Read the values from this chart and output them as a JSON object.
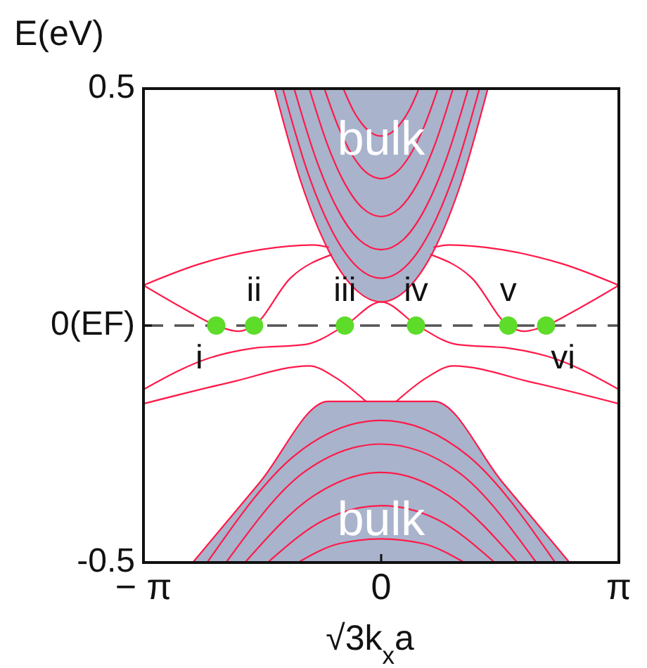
{
  "chart_data": {
    "type": "line",
    "xlabel": "√3k$_{x}$a",
    "ylabel": "E(eV)",
    "xlim": [
      -3.1416,
      3.1416
    ],
    "xticks": [
      {
        "value": -3.1416,
        "label": "− π"
      },
      0,
      {
        "value": 3.1416,
        "label": "π"
      }
    ],
    "ylim": [
      -0.5,
      0.5
    ],
    "yticks": [
      -0.5,
      {
        "value": 0,
        "label": "0(EF)"
      },
      0.5
    ],
    "ref_lines": [
      {
        "axis": "y",
        "value": 0,
        "color": "#555555",
        "line_style": "dashed"
      }
    ],
    "marker": "none",
    "line_style": "solid",
    "series": [
      {
        "color": "#ff1a4a",
        "x": [
          -1.41,
          -1.06,
          -0.71,
          -0.35,
          0,
          0.35,
          0.71,
          1.06,
          1.41
        ],
        "values": [
          0.5,
          0.303,
          0.163,
          0.078,
          0.05,
          0.078,
          0.163,
          0.303,
          0.5
        ],
        "lower": [
          0.5,
          0.303,
          0.163,
          0.078,
          0.05,
          0.078,
          0.163,
          0.303,
          0.5
        ],
        "upper": [
          0.5,
          0.5,
          0.5,
          0.5,
          0.5,
          0.5,
          0.5,
          0.5,
          0.5
        ]
      },
      {
        "color": "#ff1a4a",
        "x": [
          -1.3,
          -0.975,
          -0.65,
          -0.325,
          0,
          0.325,
          0.65,
          0.975,
          1.3
        ],
        "values": [
          0.5,
          0.325,
          0.2,
          0.125,
          0.1,
          0.125,
          0.2,
          0.325,
          0.5
        ]
      },
      {
        "color": "#ff1a4a",
        "x": [
          -1.15,
          -0.86,
          -0.575,
          -0.29,
          0,
          0.29,
          0.575,
          0.86,
          1.15
        ],
        "values": [
          0.5,
          0.351,
          0.245,
          0.181,
          0.16,
          0.181,
          0.245,
          0.351,
          0.5
        ]
      },
      {
        "color": "#ff1a4a",
        "x": [
          -0.95,
          -0.71,
          -0.475,
          -0.24,
          0,
          0.24,
          0.475,
          0.71,
          0.95
        ],
        "values": [
          0.5,
          0.382,
          0.298,
          0.247,
          0.23,
          0.247,
          0.298,
          0.382,
          0.5
        ]
      },
      {
        "color": "#ff1a4a",
        "x": [
          -0.75,
          -0.56,
          -0.375,
          -0.19,
          0,
          0.19,
          0.375,
          0.56,
          0.75
        ],
        "values": [
          0.5,
          0.417,
          0.358,
          0.322,
          0.31,
          0.322,
          0.358,
          0.417,
          0.5
        ]
      },
      {
        "color": "#ff1a4a",
        "x": [
          -0.5,
          -0.375,
          -0.25,
          -0.125,
          0,
          0.125,
          0.25,
          0.375,
          0.5
        ],
        "values": [
          0.5,
          0.456,
          0.425,
          0.406,
          0.4,
          0.406,
          0.425,
          0.456,
          0.5
        ]
      },
      {
        "color": "#ff1a4a",
        "x": [
          -2.49,
          -1.6,
          -0.7,
          0,
          0.7,
          1.6,
          2.49
        ],
        "values": [
          -0.5,
          -0.33,
          -0.16,
          -0.16,
          -0.16,
          -0.33,
          -0.5
        ],
        "lower": [
          -0.5,
          -0.5,
          -0.5,
          -0.5,
          -0.5,
          -0.5,
          -0.5
        ],
        "upper": [
          -0.5,
          -0.33,
          -0.16,
          -0.16,
          -0.16,
          -0.33,
          -0.5
        ]
      },
      {
        "color": "#ff1a4a",
        "x": [
          -2.3,
          -1.15,
          0,
          1.15,
          2.3
        ],
        "values": [
          -0.5,
          -0.275,
          -0.2,
          -0.275,
          -0.5
        ]
      },
      {
        "color": "#ff1a4a",
        "x": [
          -2.05,
          -1.025,
          0,
          1.025,
          2.05
        ],
        "values": [
          -0.5,
          -0.31,
          -0.25,
          -0.31,
          -0.5
        ]
      },
      {
        "color": "#ff1a4a",
        "x": [
          -1.8,
          -0.9,
          0,
          0.9,
          1.8
        ],
        "values": [
          -0.5,
          -0.36,
          -0.31,
          -0.36,
          -0.5
        ]
      },
      {
        "color": "#ff1a4a",
        "x": [
          -1.5,
          -0.75,
          0,
          0.75,
          1.5
        ],
        "values": [
          -0.5,
          -0.41,
          -0.38,
          -0.41,
          -0.5
        ]
      },
      {
        "color": "#ff1a4a",
        "x": [
          -1.1,
          -0.55,
          0,
          0.55,
          1.1
        ],
        "values": [
          -0.5,
          -0.46,
          -0.45,
          -0.46,
          -0.5
        ]
      },
      {
        "color": "#ff1a4a",
        "x": [
          -3.1416,
          -2.4,
          -1.6,
          -0.9,
          -0.69
        ],
        "values": [
          0.085,
          0.13,
          0.16,
          0.17,
          0.165
        ]
      },
      {
        "color": "#ff1a4a",
        "x": [
          0.69,
          0.9,
          1.6,
          2.4,
          3.1416
        ],
        "values": [
          0.165,
          0.17,
          0.16,
          0.13,
          0.085
        ]
      },
      {
        "color": "#ff1a4a",
        "x": [
          -3.1416,
          -2.6,
          -2.18,
          -1.89,
          -1.68,
          -1.2,
          -0.65
        ],
        "values": [
          0.085,
          0.035,
          0,
          -0.012,
          0,
          0.1,
          0.15
        ]
      },
      {
        "color": "#ff1a4a",
        "x": [
          0.65,
          1.2,
          1.68,
          1.89,
          2.18,
          2.6,
          3.1416
        ],
        "values": [
          0.15,
          0.1,
          0,
          -0.012,
          0,
          0.035,
          0.085
        ]
      },
      {
        "color": "#ff1a4a",
        "x": [
          -3.1416,
          -2.3,
          -1.7,
          -1.0,
          -0.48,
          0,
          0.48,
          1.0,
          1.7,
          2.3,
          3.1416
        ],
        "values": [
          -0.135,
          -0.07,
          -0.048,
          -0.04,
          0,
          0.05,
          0,
          -0.04,
          -0.048,
          -0.07,
          -0.135
        ]
      },
      {
        "color": "#ff1a4a",
        "x": [
          -3.1416,
          -2.0,
          -0.95,
          -0.6,
          -0.2
        ],
        "values": [
          -0.165,
          -0.12,
          -0.085,
          -0.11,
          -0.16
        ]
      },
      {
        "color": "#ff1a4a",
        "x": [
          0.2,
          0.6,
          0.95,
          2.0,
          3.1416
        ],
        "values": [
          -0.16,
          -0.11,
          -0.085,
          -0.12,
          -0.165
        ]
      },
      {
        "type": "scatter",
        "marker": "circle",
        "color": "#5ddc2a",
        "x": [
          -2.18,
          -1.68,
          -0.48,
          0.46,
          1.68,
          2.18
        ],
        "values": [
          0,
          0,
          0,
          0,
          0,
          0
        ]
      }
    ],
    "annotations": [
      {
        "text": "i",
        "x": -2.18,
        "y": 0
      },
      {
        "text": "ii",
        "x": -1.68,
        "y": 0
      },
      {
        "text": "iii",
        "x": -0.48,
        "y": 0
      },
      {
        "text": "iv",
        "x": 0.46,
        "y": 0
      },
      {
        "text": "v",
        "x": 1.68,
        "y": 0
      },
      {
        "text": "vi",
        "x": 2.18,
        "y": 0
      },
      "bulk",
      "bulk"
    ]
  }
}
